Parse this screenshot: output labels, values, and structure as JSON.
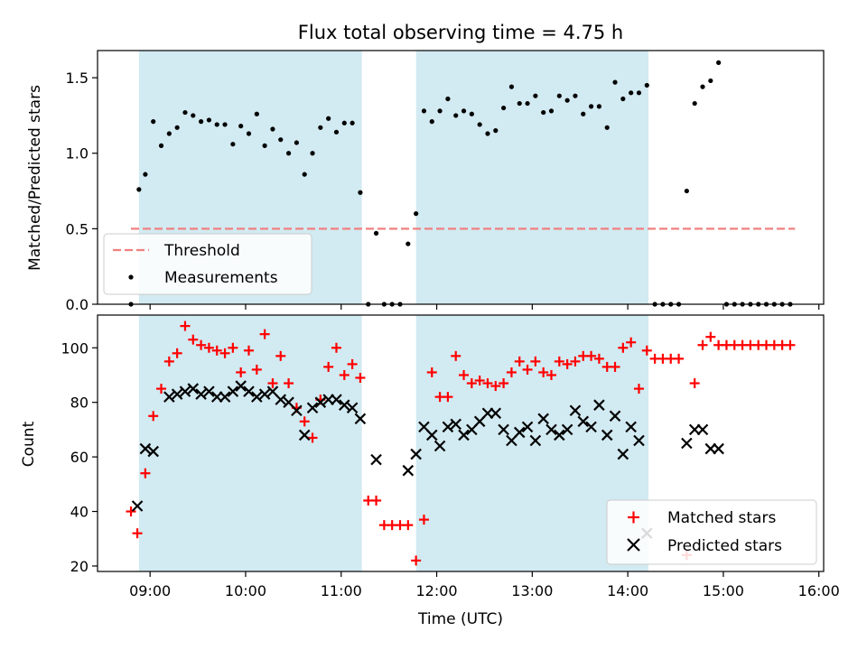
{
  "chart_data": [
    {
      "type": "scatter",
      "title": "Flux total observing time = 4.75 h",
      "xlabel": "",
      "ylabel": "Matched/Predicted stars",
      "ylim": [
        0,
        1.68
      ],
      "yticks": [
        "0.0",
        "0.5",
        "1.0",
        "1.5"
      ],
      "xlim_hours": [
        8.45,
        16.05
      ],
      "shaded_intervals": [
        [
          "08:53",
          "11:13"
        ],
        [
          "11:47",
          "14:13"
        ]
      ],
      "shade_color": "#add8e6",
      "legend": {
        "position": "lower-left",
        "entries": [
          "Threshold",
          "Measurements"
        ]
      },
      "threshold": {
        "name": "Threshold",
        "value": 0.5,
        "x_range": [
          "08:48",
          "15:45"
        ],
        "color": "#f08080",
        "style": "dashed"
      },
      "series": [
        {
          "name": "Measurements",
          "color": "#000000",
          "marker": "dot",
          "x": [
            "08:48",
            "08:53",
            "08:57",
            "09:02",
            "09:07",
            "09:12",
            "09:17",
            "09:22",
            "09:27",
            "09:32",
            "09:37",
            "09:42",
            "09:47",
            "09:52",
            "09:57",
            "10:02",
            "10:07",
            "10:12",
            "10:17",
            "10:22",
            "10:27",
            "10:32",
            "10:37",
            "10:42",
            "10:47",
            "10:52",
            "10:57",
            "11:02",
            "11:07",
            "11:12",
            "11:17",
            "11:22",
            "11:27",
            "11:32",
            "11:37",
            "11:42",
            "11:47",
            "11:52",
            "11:57",
            "12:02",
            "12:07",
            "12:12",
            "12:17",
            "12:22",
            "12:27",
            "12:32",
            "12:37",
            "12:42",
            "12:47",
            "12:52",
            "12:57",
            "13:02",
            "13:07",
            "13:12",
            "13:17",
            "13:22",
            "13:27",
            "13:32",
            "13:37",
            "13:42",
            "13:47",
            "13:52",
            "13:57",
            "14:02",
            "14:07",
            "14:12",
            "14:17",
            "14:22",
            "14:27",
            "14:32",
            "14:37",
            "14:42",
            "14:47",
            "14:52",
            "14:57",
            "15:02",
            "15:07",
            "15:12",
            "15:17",
            "15:22",
            "15:27",
            "15:32",
            "15:37",
            "15:42"
          ],
          "y": [
            0.0,
            0.76,
            0.86,
            1.21,
            1.05,
            1.13,
            1.17,
            1.27,
            1.25,
            1.21,
            1.22,
            1.19,
            1.19,
            1.06,
            1.18,
            1.13,
            1.26,
            1.05,
            1.16,
            1.09,
            1.0,
            1.07,
            0.86,
            1.0,
            1.17,
            1.23,
            1.14,
            1.2,
            1.2,
            0.74,
            0.0,
            0.47,
            0.0,
            0.0,
            0.0,
            0.4,
            0.6,
            1.28,
            1.21,
            1.28,
            1.36,
            1.25,
            1.28,
            1.26,
            1.19,
            1.13,
            1.15,
            1.3,
            1.44,
            1.33,
            1.33,
            1.38,
            1.27,
            1.28,
            1.38,
            1.35,
            1.38,
            1.26,
            1.31,
            1.31,
            1.17,
            1.47,
            1.36,
            1.4,
            1.4,
            1.45,
            0.0,
            0.0,
            0.0,
            0.0,
            0.75,
            1.33,
            1.44,
            1.48,
            1.6,
            0.0,
            0.0,
            0.0,
            0.0,
            0.0,
            0.0,
            0.0,
            0.0,
            0.0
          ]
        }
      ]
    },
    {
      "type": "scatter",
      "title": "",
      "xlabel": "Time (UTC)",
      "ylabel": "Count",
      "ylim": [
        18,
        112
      ],
      "yticks": [
        "20",
        "40",
        "60",
        "80",
        "100"
      ],
      "xticks": [
        "09:00",
        "10:00",
        "11:00",
        "12:00",
        "13:00",
        "14:00",
        "15:00",
        "16:00"
      ],
      "xlim_hours": [
        8.45,
        16.05
      ],
      "shaded_intervals": [
        [
          "08:53",
          "11:13"
        ],
        [
          "11:47",
          "14:13"
        ]
      ],
      "shade_color": "#add8e6",
      "legend": {
        "position": "lower-right",
        "entries": [
          "Matched stars",
          "Predicted stars"
        ]
      },
      "series": [
        {
          "name": "Matched stars",
          "color": "#ff0000",
          "marker": "plus",
          "x": [
            "08:48",
            "08:52",
            "08:57",
            "09:02",
            "09:07",
            "09:12",
            "09:17",
            "09:22",
            "09:27",
            "09:32",
            "09:37",
            "09:42",
            "09:47",
            "09:52",
            "09:57",
            "10:02",
            "10:07",
            "10:12",
            "10:17",
            "10:22",
            "10:27",
            "10:32",
            "10:37",
            "10:42",
            "10:47",
            "10:52",
            "10:57",
            "11:02",
            "11:07",
            "11:12",
            "11:17",
            "11:22",
            "11:27",
            "11:32",
            "11:37",
            "11:42",
            "11:47",
            "11:52",
            "11:57",
            "12:02",
            "12:07",
            "12:12",
            "12:17",
            "12:22",
            "12:27",
            "12:32",
            "12:37",
            "12:42",
            "12:47",
            "12:52",
            "12:57",
            "13:02",
            "13:07",
            "13:12",
            "13:17",
            "13:22",
            "13:27",
            "13:32",
            "13:37",
            "13:42",
            "13:47",
            "13:52",
            "13:57",
            "14:02",
            "14:07",
            "14:12",
            "14:17",
            "14:22",
            "14:27",
            "14:32",
            "14:37",
            "14:42",
            "14:47",
            "14:52",
            "14:57",
            "15:02",
            "15:07",
            "15:12",
            "15:17",
            "15:22",
            "15:27",
            "15:32",
            "15:37",
            "15:42"
          ],
          "y": [
            40,
            32,
            54,
            75,
            85,
            95,
            98,
            108,
            103,
            101,
            100,
            99,
            98,
            100,
            91,
            99,
            92,
            105,
            87,
            97,
            87,
            78,
            73,
            67,
            81,
            93,
            100,
            90,
            94,
            89,
            44,
            44,
            35,
            35,
            35,
            35,
            22,
            37,
            91,
            82,
            82,
            97,
            90,
            87,
            88,
            87,
            86,
            87,
            91,
            95,
            92,
            95,
            91,
            90,
            95,
            94,
            95,
            97,
            97,
            96,
            93,
            93,
            100,
            102,
            85,
            99,
            96,
            96,
            96,
            96,
            24,
            87,
            101,
            104,
            101,
            101,
            101,
            101,
            101,
            101,
            101,
            101,
            101,
            101
          ]
        },
        {
          "name": "Predicted stars",
          "color": "#000000",
          "marker": "cross",
          "x": [
            "08:52",
            "08:57",
            "09:02",
            "09:12",
            "09:17",
            "09:22",
            "09:27",
            "09:32",
            "09:37",
            "09:42",
            "09:47",
            "09:52",
            "09:57",
            "10:02",
            "10:07",
            "10:12",
            "10:17",
            "10:22",
            "10:27",
            "10:32",
            "10:37",
            "10:42",
            "10:47",
            "10:52",
            "10:57",
            "11:02",
            "11:07",
            "11:12",
            "11:22",
            "11:42",
            "11:47",
            "11:52",
            "11:57",
            "12:02",
            "12:07",
            "12:12",
            "12:17",
            "12:22",
            "12:27",
            "12:32",
            "12:37",
            "12:42",
            "12:47",
            "12:52",
            "12:57",
            "13:02",
            "13:07",
            "13:12",
            "13:17",
            "13:22",
            "13:27",
            "13:32",
            "13:37",
            "13:42",
            "13:47",
            "13:52",
            "13:57",
            "14:02",
            "14:07",
            "14:12",
            "14:37",
            "14:42",
            "14:47",
            "14:52",
            "14:57"
          ],
          "y": [
            42,
            63,
            62,
            82,
            83,
            84,
            85,
            83,
            84,
            82,
            82,
            84,
            86,
            84,
            82,
            83,
            84,
            81,
            80,
            77,
            68,
            78,
            80,
            81,
            81,
            79,
            78,
            74,
            59,
            55,
            61,
            71,
            68,
            64,
            71,
            72,
            68,
            70,
            73,
            76,
            76,
            70,
            66,
            69,
            71,
            66,
            74,
            70,
            68,
            70,
            77,
            73,
            71,
            79,
            68,
            75,
            61,
            71,
            66,
            32,
            65,
            70,
            70,
            63,
            63
          ]
        }
      ]
    }
  ]
}
